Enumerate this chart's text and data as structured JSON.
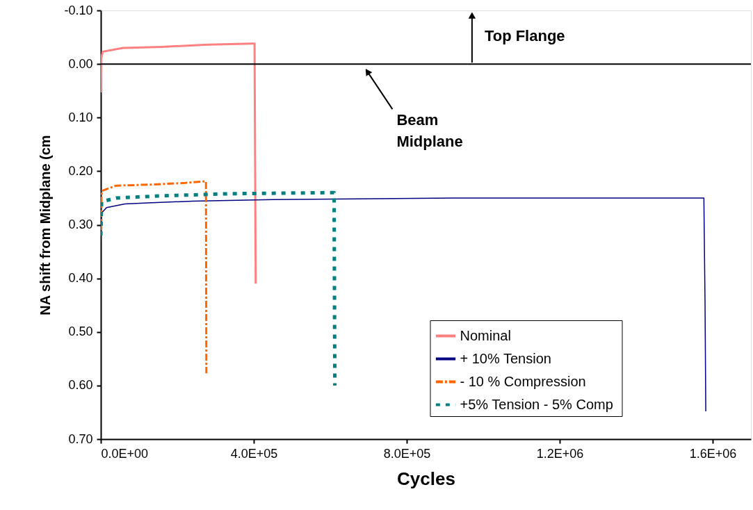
{
  "chart_data": {
    "type": "line",
    "xlabel": "Cycles",
    "ylabel": "NA shift from Midplane (cm",
    "xlim": [
      0,
      1700000
    ],
    "ylim": [
      0.7,
      -0.1
    ],
    "xticks": [
      {
        "value": 0,
        "label": "0.0E+00"
      },
      {
        "value": 400000,
        "label": "4.0E+05"
      },
      {
        "value": 800000,
        "label": "8.0E+05"
      },
      {
        "value": 1200000,
        "label": "1.2E+06"
      },
      {
        "value": 1600000,
        "label": "1.6E+06"
      }
    ],
    "yticks": [
      {
        "value": -0.1,
        "label": "-0.10"
      },
      {
        "value": 0,
        "label": "0.00"
      },
      {
        "value": 0.1,
        "label": "0.10"
      },
      {
        "value": 0.2,
        "label": "0.20"
      },
      {
        "value": 0.3,
        "label": "0.30"
      },
      {
        "value": 0.4,
        "label": "0.40"
      },
      {
        "value": 0.5,
        "label": "0.50"
      },
      {
        "value": 0.6,
        "label": "0.60"
      },
      {
        "value": 0.7,
        "label": "0.70"
      }
    ],
    "grid": false,
    "legend": "bottom right",
    "marker": "none",
    "ref_lines": [
      {
        "axis": "y",
        "value": 0,
        "color": "#000000",
        "line_style": "solid"
      }
    ],
    "annotations": [
      "Top Flange",
      "Beam Midplane"
    ],
    "series": [
      {
        "name": "Nominal",
        "color": "#ff8080",
        "line_style": "solid",
        "x": [
          0,
          1000,
          5000,
          58000,
          160000,
          280000,
          395000,
          402000,
          405000
        ],
        "values": [
          0.053,
          -0.01,
          -0.023,
          -0.03,
          -0.032,
          -0.036,
          -0.038,
          -0.038,
          0.41
        ]
      },
      {
        "name": "+ 10% Tension",
        "color": "#000080",
        "line_style": "solid",
        "x": [
          0,
          2000,
          15000,
          63000,
          123000,
          240000,
          450000,
          925000,
          1577000,
          1580000,
          1582000
        ],
        "values": [
          0.33,
          0.278,
          0.268,
          0.261,
          0.259,
          0.256,
          0.253,
          0.25,
          0.25,
          0.444,
          0.648
        ]
      },
      {
        "name": "- 10 % Compression",
        "color": "#ff6600",
        "line_style": "dashed",
        "x": [
          0,
          2000,
          40000,
          130000,
          220000,
          272000,
          275000,
          276000
        ],
        "values": [
          0.31,
          0.237,
          0.227,
          0.225,
          0.222,
          0.219,
          0.219,
          0.577
        ]
      },
      {
        "name": "+5% Tension  - 5% Comp",
        "color": "#008080",
        "line_style": "dotted",
        "x": [
          0,
          2000,
          40000,
          160000,
          340000,
          608000,
          610000,
          612000
        ],
        "values": [
          0.32,
          0.257,
          0.25,
          0.246,
          0.242,
          0.24,
          0.24,
          0.6
        ]
      }
    ]
  }
}
